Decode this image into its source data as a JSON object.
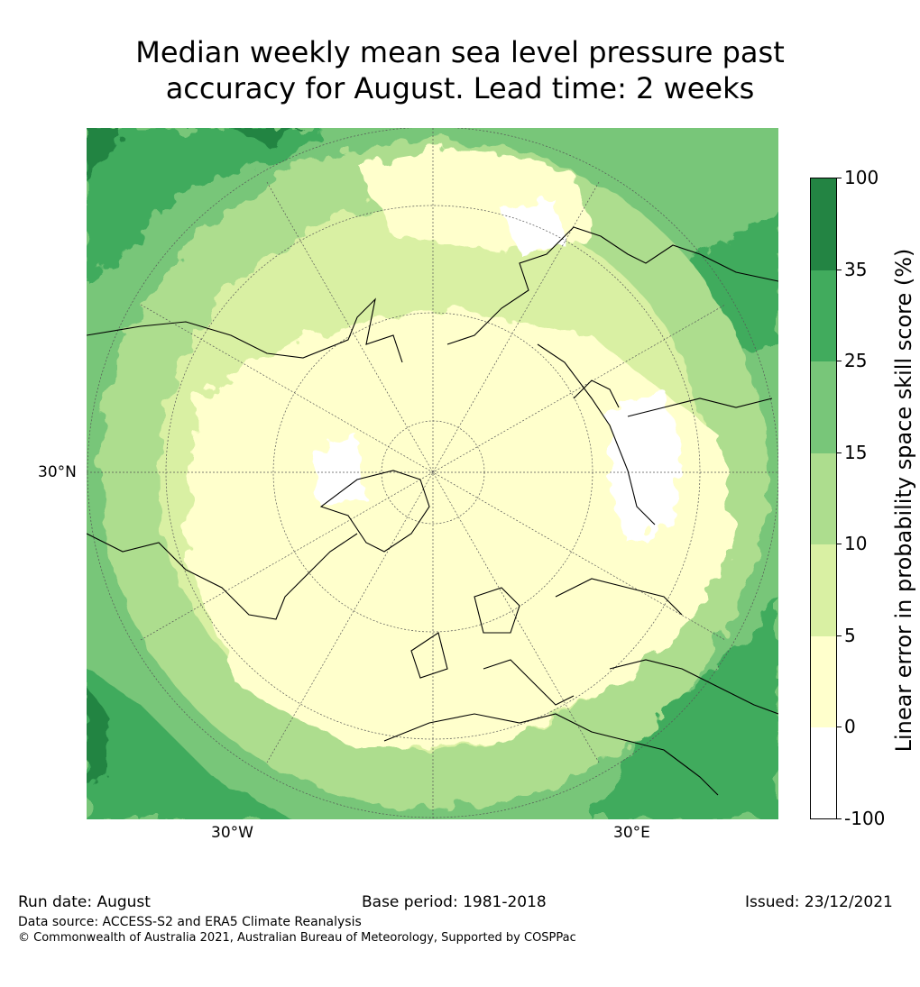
{
  "title_line1": "Median weekly mean sea level pressure past",
  "title_line2": "accuracy for August. Lead time: 2 weeks",
  "map": {
    "projection": "north-polar-stereographic",
    "lat_label": "30°N",
    "lon_labels": [
      "30°W",
      "30°E"
    ]
  },
  "colorbar": {
    "label": "Linear error in probability space skill score (%)",
    "ticks": [
      "100",
      "35",
      "25",
      "15",
      "10",
      "5",
      "0",
      "-100"
    ],
    "bins": [
      {
        "range": "35–100",
        "color": "#238443"
      },
      {
        "range": "25–35",
        "color": "#41ab5d"
      },
      {
        "range": "15–25",
        "color": "#78c679"
      },
      {
        "range": "10–15",
        "color": "#addd8e"
      },
      {
        "range": "5–10",
        "color": "#d9f0a3"
      },
      {
        "range": "0–5",
        "color": "#ffffcc"
      },
      {
        "range": "-100–0",
        "color": "#ffffff"
      }
    ]
  },
  "footer": {
    "run_date": "Run date: August",
    "base_period": "Base period: 1981-2018",
    "issued": "Issued: 23/12/2021",
    "data_source": "Data source: ACCESS-S2 and ERA5 Climate Reanalysis",
    "copyright": "© Commonwealth of Australia 2021, Australian Bureau of Meteorology, Supported by COSPPac"
  }
}
